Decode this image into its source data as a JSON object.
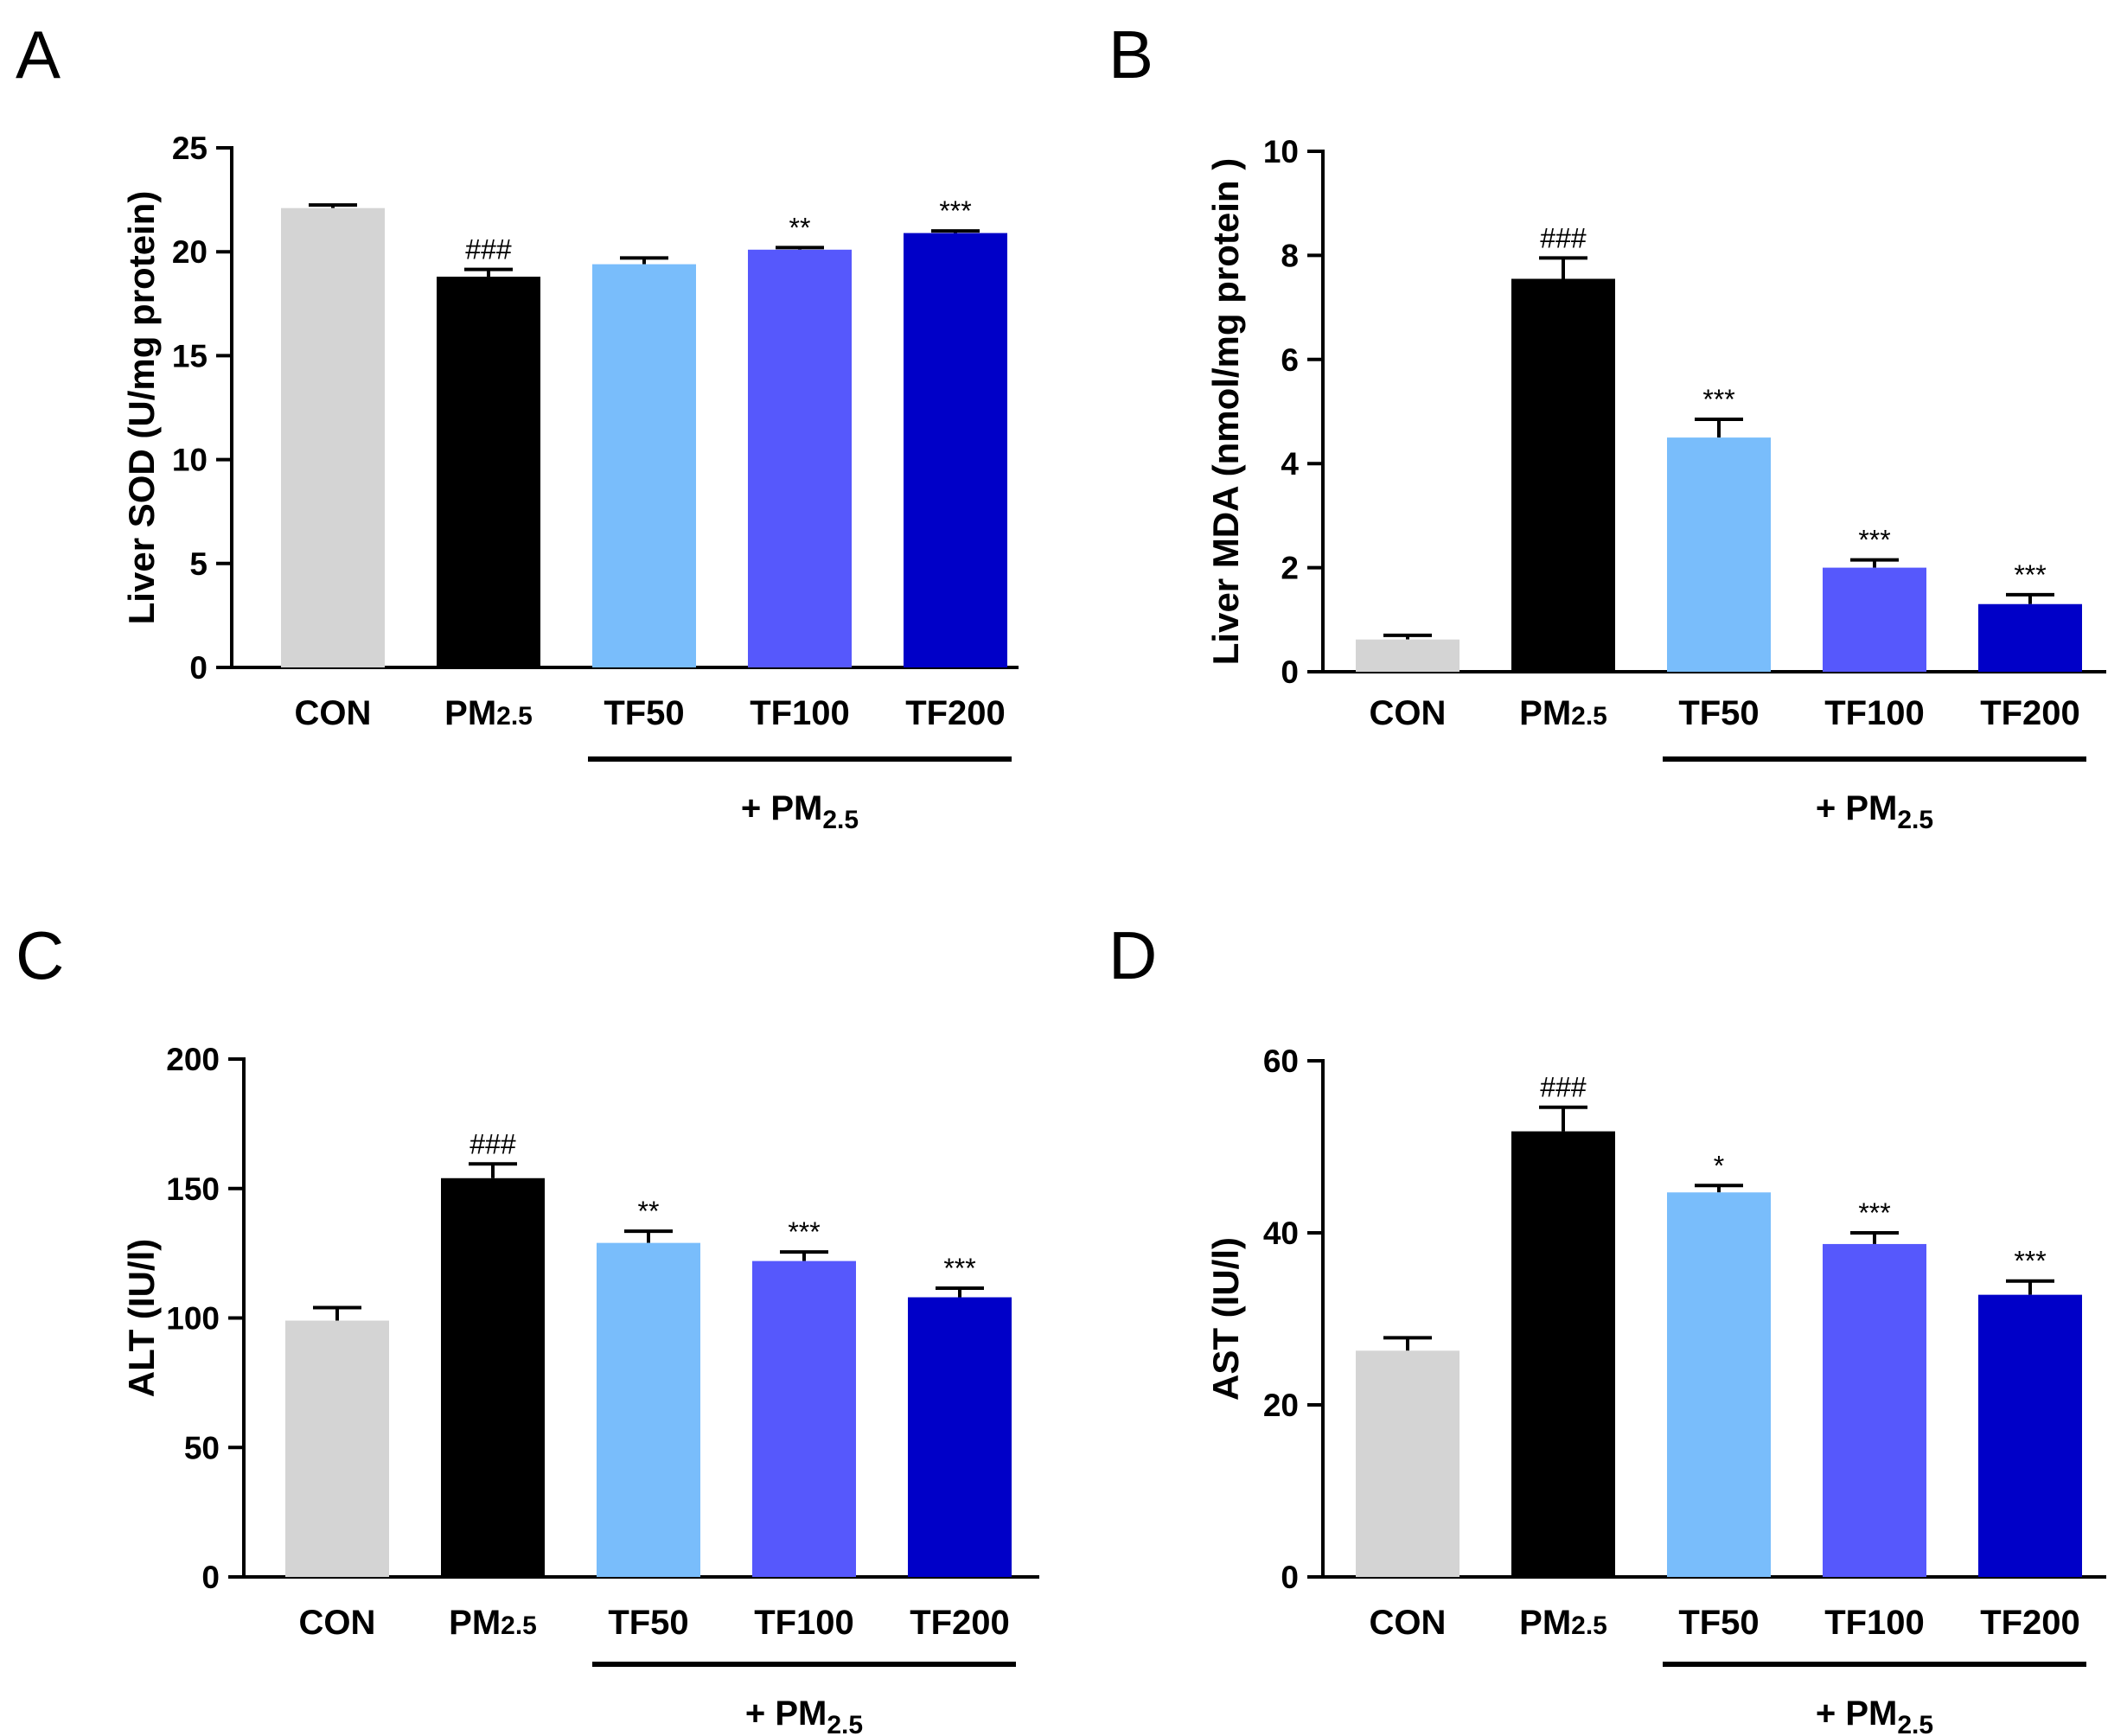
{
  "chart_data": [
    {
      "panel": "A",
      "type": "bar",
      "ylabel": "Liver SOD (U/mg protein)",
      "ylim": [
        0,
        25
      ],
      "yticks": [
        0,
        5,
        10,
        15,
        20,
        25
      ],
      "categories": [
        {
          "main": "CON",
          "sub": ""
        },
        {
          "main": "PM",
          "sub": "2.5"
        },
        {
          "main": "TF50",
          "sub": ""
        },
        {
          "main": "TF100",
          "sub": ""
        },
        {
          "main": "TF200",
          "sub": ""
        }
      ],
      "values": [
        22.1,
        18.8,
        19.4,
        20.1,
        20.9
      ],
      "errors": [
        0.15,
        0.35,
        0.3,
        0.1,
        0.1
      ],
      "significance": [
        "",
        "###",
        "",
        "**",
        "***"
      ],
      "group": {
        "prefix": "+ PM",
        "sub": "2.5",
        "from": 2,
        "to": 4
      }
    },
    {
      "panel": "B",
      "type": "bar",
      "ylabel": "Liver MDA (nmol/mg protein )",
      "ylim": [
        0,
        10
      ],
      "yticks": [
        0,
        2,
        4,
        6,
        8,
        10
      ],
      "categories": [
        {
          "main": "CON",
          "sub": ""
        },
        {
          "main": "PM",
          "sub": "2.5"
        },
        {
          "main": "TF50",
          "sub": ""
        },
        {
          "main": "TF100",
          "sub": ""
        },
        {
          "main": "TF200",
          "sub": ""
        }
      ],
      "values": [
        0.62,
        7.55,
        4.5,
        2.0,
        1.3
      ],
      "errors": [
        0.08,
        0.4,
        0.35,
        0.15,
        0.18
      ],
      "significance": [
        "",
        "###",
        "***",
        "***",
        "***"
      ],
      "group": {
        "prefix": "+ PM",
        "sub": "2.5",
        "from": 2,
        "to": 4
      }
    },
    {
      "panel": "C",
      "type": "bar",
      "ylabel": "ALT (IU/l)",
      "ylim": [
        0,
        200
      ],
      "yticks": [
        0,
        50,
        100,
        150,
        200
      ],
      "categories": [
        {
          "main": "CON",
          "sub": ""
        },
        {
          "main": "PM",
          "sub": "2.5"
        },
        {
          "main": "TF50",
          "sub": ""
        },
        {
          "main": "TF100",
          "sub": ""
        },
        {
          "main": "TF200",
          "sub": ""
        }
      ],
      "values": [
        99,
        154,
        129,
        122,
        108
      ],
      "errors": [
        5,
        5.5,
        4.5,
        3.5,
        3.5
      ],
      "significance": [
        "",
        "###",
        "**",
        "***",
        "***"
      ],
      "group": {
        "prefix": "+ PM",
        "sub": "2.5",
        "from": 2,
        "to": 4
      }
    },
    {
      "panel": "D",
      "type": "bar",
      "ylabel": "AST (IU/l)",
      "ylim": [
        0,
        60
      ],
      "yticks": [
        0,
        20,
        40,
        60
      ],
      "categories": [
        {
          "main": "CON",
          "sub": ""
        },
        {
          "main": "PM",
          "sub": "2.5"
        },
        {
          "main": "TF50",
          "sub": ""
        },
        {
          "main": "TF100",
          "sub": ""
        },
        {
          "main": "TF200",
          "sub": ""
        }
      ],
      "values": [
        26.3,
        51.8,
        44.7,
        38.7,
        32.8
      ],
      "errors": [
        1.5,
        2.8,
        0.8,
        1.3,
        1.6
      ],
      "significance": [
        "",
        "###",
        "*",
        "***",
        "***"
      ],
      "group": {
        "prefix": "+ PM",
        "sub": "2.5",
        "from": 2,
        "to": 4
      }
    }
  ],
  "colors": [
    "#d4d4d4",
    "#000000",
    "#79bdfb",
    "#5658fc",
    "#0000c8"
  ]
}
